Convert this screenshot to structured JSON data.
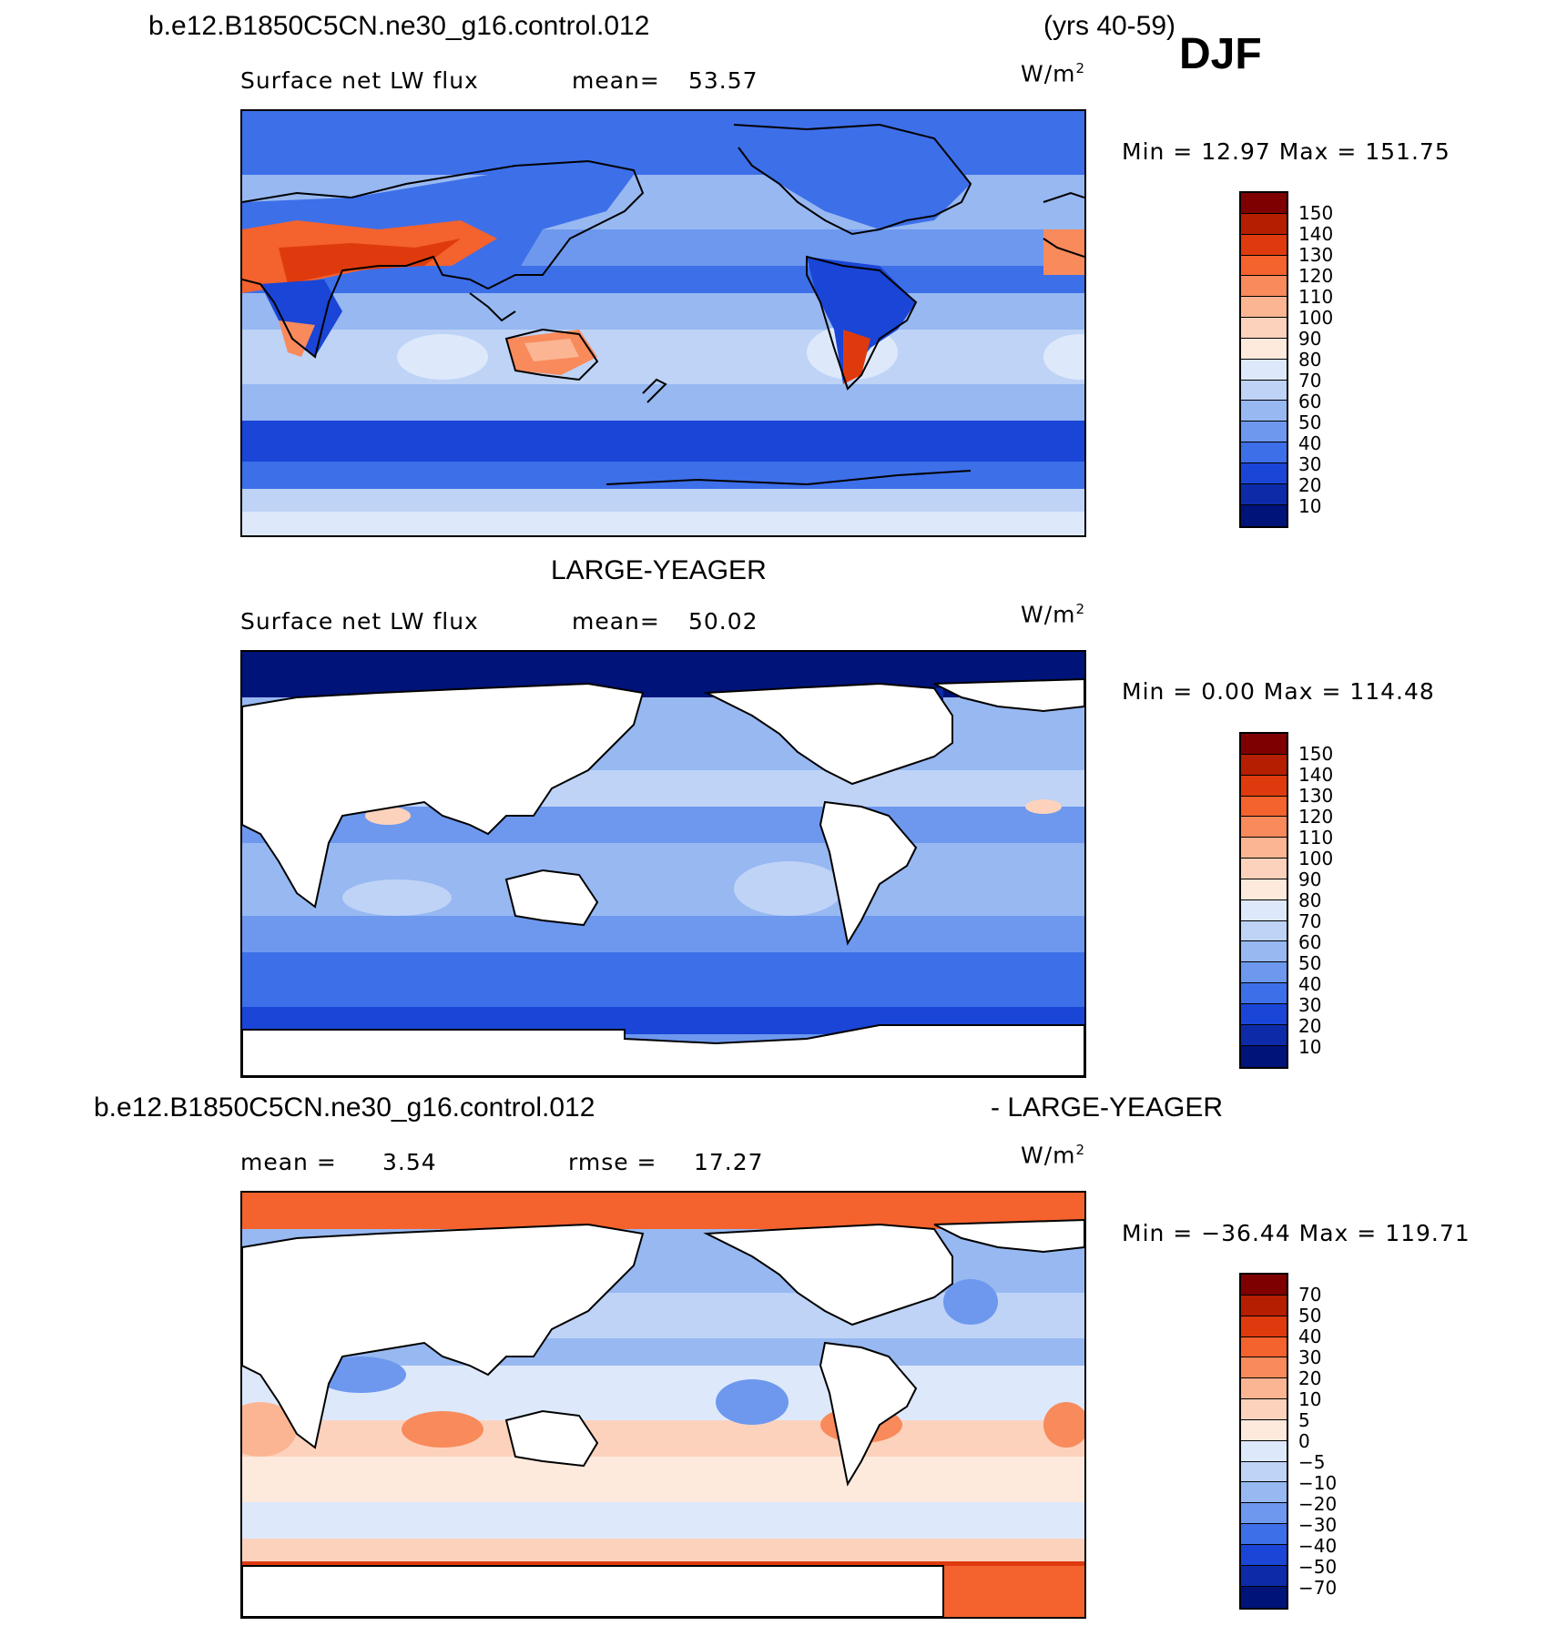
{
  "header": {
    "case_name": "b.e12.B1850C5CN.ne30_g16.control.012",
    "years": "(yrs 40-59)",
    "season": "DJF"
  },
  "panels": [
    {
      "id": "model",
      "title": "",
      "variable": "Surface net LW flux",
      "stat_label": "mean=",
      "stat_value": "53.57",
      "units": "W/m",
      "units_exp": "2",
      "minmax": "Min =   12.97 Max = 151.75",
      "colorbar_labels": [
        "150",
        "140",
        "130",
        "120",
        "110",
        "100",
        "90",
        "80",
        "70",
        "60",
        "50",
        "40",
        "30",
        "20",
        "10"
      ]
    },
    {
      "id": "obs",
      "title": "LARGE-YEAGER",
      "variable": "Surface net LW flux",
      "stat_label": "mean=",
      "stat_value": "50.02",
      "units": "W/m",
      "units_exp": "2",
      "minmax": "Min =    0.00 Max = 114.48",
      "colorbar_labels": [
        "150",
        "140",
        "130",
        "120",
        "110",
        "100",
        "90",
        "80",
        "70",
        "60",
        "50",
        "40",
        "30",
        "20",
        "10"
      ]
    },
    {
      "id": "diff",
      "title_left": "b.e12.B1850C5CN.ne30_g16.control.012",
      "title_right": "- LARGE-YEAGER",
      "mean_label": "mean =",
      "mean_value": "3.54",
      "rmse_label": "rmse =",
      "rmse_value": "17.27",
      "units": "W/m",
      "units_exp": "2",
      "minmax": "Min = −36.44 Max = 119.71",
      "colorbar_labels": [
        "70",
        "50",
        "40",
        "30",
        "20",
        "10",
        "5",
        "0",
        "−5",
        "−10",
        "−20",
        "−30",
        "−40",
        "−50",
        "−70"
      ]
    }
  ],
  "palette_abs": [
    "#7e0000",
    "#b51e00",
    "#df3a0e",
    "#f4622d",
    "#f88a5c",
    "#fbb593",
    "#fdd2bc",
    "#fdeadd",
    "#dde9fb",
    "#bed3f6",
    "#97b8f1",
    "#6d98ee",
    "#3d6fe9",
    "#1a45d6",
    "#0d2ba8",
    "#001379"
  ],
  "palette_diff": [
    "#7e0000",
    "#b51e00",
    "#df3a0e",
    "#f4622d",
    "#f88a5c",
    "#fbb593",
    "#fdd2bc",
    "#fdeadd",
    "#dde9fb",
    "#bed3f6",
    "#97b8f1",
    "#6d98ee",
    "#3d6fe9",
    "#1a45d6",
    "#0d2ba8",
    "#001379"
  ]
}
